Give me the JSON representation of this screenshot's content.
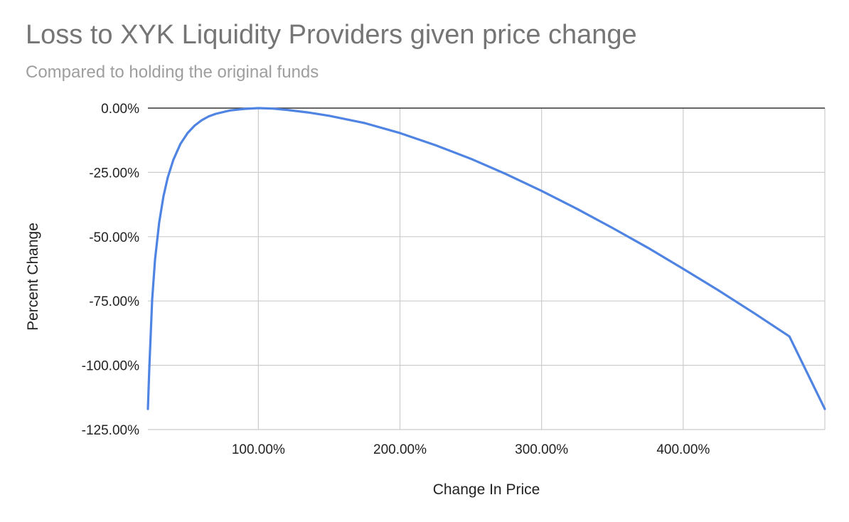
{
  "title": "Loss to XYK Liquidity Providers given price change",
  "subtitle": "Compared to holding the original funds",
  "colors": {
    "series": "#4f84e3",
    "grid": "#cccccc",
    "zero_line": "#333333",
    "title": "#757575",
    "subtitle": "#9e9e9e"
  },
  "chart_data": {
    "type": "line",
    "title": "Loss to XYK Liquidity Providers given price change",
    "subtitle": "Compared to holding the original funds",
    "xlabel": "Change In Price",
    "ylabel": "Percent Change",
    "xlim": [
      22,
      500
    ],
    "ylim": [
      -125,
      0
    ],
    "x_ticks": [
      100,
      200,
      300,
      400
    ],
    "x_tick_labels": [
      "100.00%",
      "200.00%",
      "300.00%",
      "400.00%"
    ],
    "y_ticks": [
      0,
      -25,
      -50,
      -75,
      -100,
      -125
    ],
    "y_tick_labels": [
      "0.00%",
      "-25.00%",
      "-50.00%",
      "-75.00%",
      "-100.00%",
      "-125.00%"
    ],
    "grid": true,
    "series": [
      {
        "x": [
          22,
          23,
          25,
          27,
          30,
          33,
          36,
          40,
          45,
          50,
          55,
          60,
          65,
          70,
          80,
          90,
          100,
          110,
          120,
          135,
          150,
          175,
          200,
          225,
          250,
          275,
          300,
          325,
          350,
          375,
          400,
          425,
          450,
          475,
          500
        ],
        "y": [
          -117,
          -101,
          -74.5,
          -59,
          -44.4,
          -34.3,
          -27,
          -20.1,
          -13.9,
          -9.7,
          -6.8,
          -4.7,
          -3.2,
          -2.2,
          -0.9,
          -0.3,
          0,
          -0.2,
          -0.7,
          -1.7,
          -3.0,
          -5.8,
          -9.7,
          -14.4,
          -19.7,
          -25.7,
          -32.2,
          -39.2,
          -46.6,
          -54.3,
          -62.5,
          -70.9,
          -79.7,
          -88.8,
          -117
        ]
      }
    ]
  }
}
